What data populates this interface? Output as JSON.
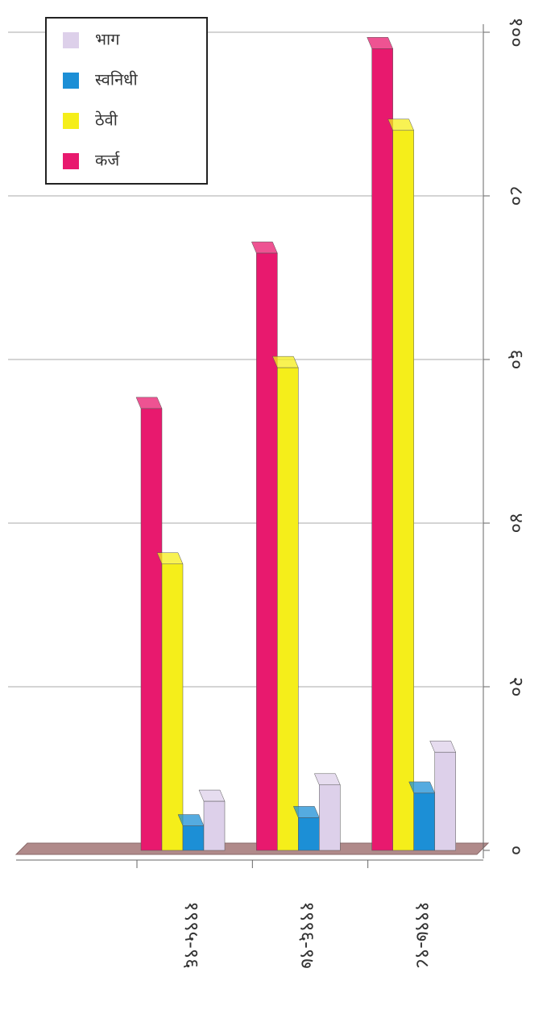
{
  "chart_data": {
    "type": "bar",
    "categories": [
      "१९९५-९६",
      "१९९६-९७",
      "१९९७-९८"
    ],
    "series": [
      {
        "name": "कर्ज",
        "color": "#e8196e",
        "values": [
          54,
          73,
          98
        ]
      },
      {
        "name": "ठेवी",
        "color": "#f5ee1a",
        "values": [
          35,
          59,
          88
        ]
      },
      {
        "name": "स्वनिधी",
        "color": "#1c8fd6",
        "values": [
          3,
          4,
          7
        ]
      },
      {
        "name": "भाग",
        "color": "#ddd0ea",
        "values": [
          6,
          8,
          12
        ]
      }
    ],
    "legend_order": [
      "भाग",
      "स्वनिधी",
      "ठेवी",
      "कर्ज"
    ],
    "ylim": [
      0,
      100
    ],
    "yticks": [
      {
        "value": 0,
        "label": "०"
      },
      {
        "value": 20,
        "label": "२०"
      },
      {
        "value": 40,
        "label": "४०"
      },
      {
        "value": 60,
        "label": "६०"
      },
      {
        "value": 80,
        "label": "८०"
      },
      {
        "value": 100,
        "label": "१००"
      }
    ],
    "grid": true
  }
}
